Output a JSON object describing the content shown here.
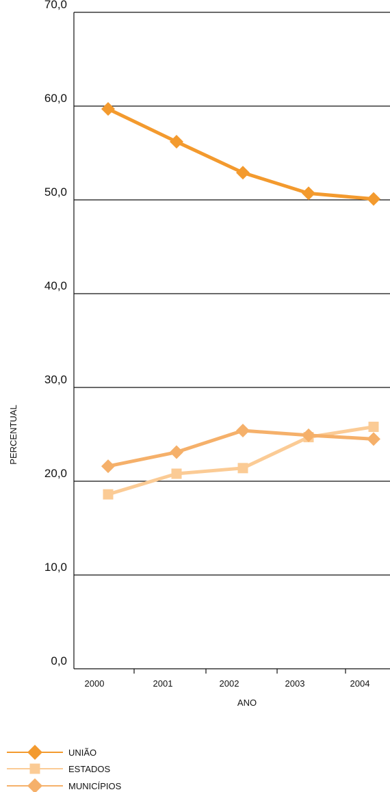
{
  "chart_data": {
    "type": "line",
    "title": "",
    "xlabel": "ANO",
    "ylabel": "PERCENTUAL",
    "ylim": [
      0,
      70
    ],
    "y_ticks": [
      "0,0",
      "10,0",
      "20,0",
      "30,0",
      "40,0",
      "50,0",
      "60,0",
      "70,0"
    ],
    "categories": [
      "2000",
      "2001",
      "2002",
      "2003",
      "2004"
    ],
    "grid": "horizontal",
    "legend_position": "bottom-left",
    "series": [
      {
        "name": "UNIÃO",
        "marker": "diamond",
        "color": "#F39A2E",
        "values": [
          59.7,
          56.2,
          52.9,
          50.7,
          50.1
        ]
      },
      {
        "name": "ESTADOS",
        "marker": "square",
        "color": "#FBCB95",
        "values": [
          18.6,
          20.8,
          21.4,
          24.7,
          25.8
        ]
      },
      {
        "name": "MUNICÍPIOS",
        "marker": "diamond",
        "color": "#F5B06A",
        "values": [
          21.6,
          23.1,
          25.4,
          24.9,
          24.5
        ]
      }
    ]
  }
}
